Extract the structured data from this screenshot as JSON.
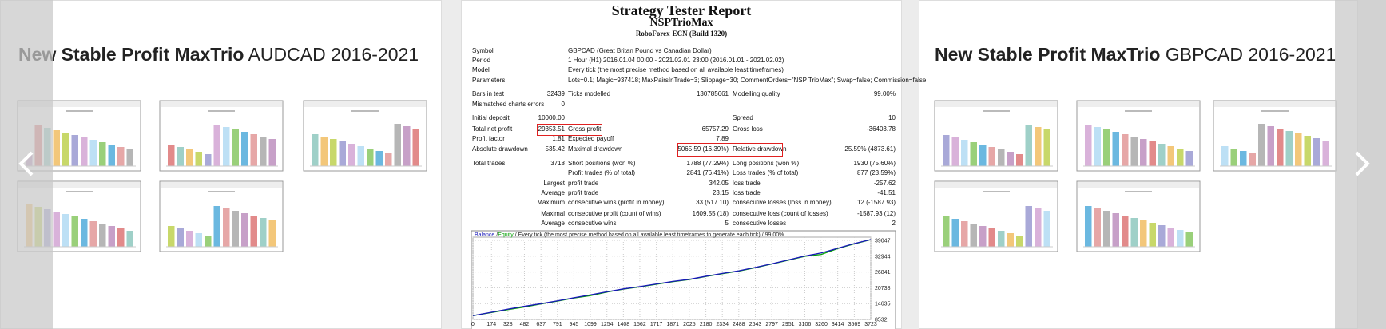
{
  "slides": [
    {
      "title_bold": "New Stable Profit MaxTrio",
      "title_rest": "AUDCAD 2016-2021"
    },
    {
      "title_bold": "New Stable Profit MaxTrio",
      "title_rest": "GBPCAD 2016-2021"
    }
  ],
  "report": {
    "title": "Strategy Tester Report",
    "subtitle": "NSPTrioMax",
    "broker": "RoboForex-ECN (Build 1320)",
    "info": [
      {
        "label": "Symbol",
        "value": "GBPCAD (Great Britan Pound vs Canadian Dollar)"
      },
      {
        "label": "Period",
        "value": "1 Hour (H1) 2016.01.04 00:00 - 2021.02.01 23:00 (2016.01.01 - 2021.02.02)"
      },
      {
        "label": "Model",
        "value": "Every tick (the most precise method based on all available least timeframes)"
      },
      {
        "label": "Parameters",
        "value": "Lots=0.1; Magic=937418; MaxPairsInTrade=3; Slippage=30; CommentOrders=\"NSP TrioMax\"; Swap=false; Commission=false;"
      }
    ],
    "stats": [
      {
        "label": "Bars in test",
        "value": "32439",
        "label2": "Ticks modelled",
        "value2": "130785661",
        "label3": "Modelling quality",
        "value3": "99.00%"
      },
      {
        "label": "Mismatched charts errors",
        "value": "0"
      },
      {
        "label": "Initial deposit",
        "value": "10000.00",
        "label3": "Spread",
        "value3": "10"
      },
      {
        "label": "Total net profit",
        "value": "29353.51",
        "label2": "Gross profit",
        "value2": "65757.29",
        "label3": "Gross loss",
        "value3": "-36403.78"
      },
      {
        "label": "Profit factor",
        "value": "1.81",
        "label2": "Expected payoff",
        "value2": "7.89"
      },
      {
        "label": "Absolute drawdown",
        "value": "535.42",
        "label2": "Maximal drawdown",
        "value2": "5065.59 (16.39%)",
        "label3": "Relative drawdown",
        "value3": "25.59% (4873.61)"
      },
      {
        "label": "Total trades",
        "value": "3718",
        "label2": "Short positions (won %)",
        "value2": "1788 (77.29%)",
        "label3": "Long positions (won %)",
        "value3": "1930 (75.60%)"
      },
      {
        "label2": "Profit trades (% of total)",
        "value2": "2841 (76.41%)",
        "label3": "Loss trades (% of total)",
        "value3": "877 (23.59%)"
      },
      {
        "qualifier": "Largest",
        "label2": "profit trade",
        "value2": "342.05",
        "label3": "loss trade",
        "value3": "-257.62"
      },
      {
        "qualifier": "Average",
        "label2": "profit trade",
        "value2": "23.15",
        "label3": "loss trade",
        "value3": "-41.51"
      },
      {
        "qualifier": "Maximum",
        "label2": "consecutive wins (profit in money)",
        "value2": "33 (517.10)",
        "label3": "consecutive losses (loss in money)",
        "value3": "12 (-1587.93)"
      },
      {
        "qualifier": "Maximal",
        "label2": "consecutive profit (count of wins)",
        "value2": "1609.55 (18)",
        "label3": "consecutive loss (count of losses)",
        "value3": "-1587.93 (12)"
      },
      {
        "qualifier": "Average",
        "label2": "consecutive wins",
        "value2": "5",
        "label3": "consecutive losses",
        "value3": "2"
      }
    ]
  },
  "chart_data": {
    "type": "line",
    "legend_separator": "/",
    "legend_note": "Every tick (the most precise method based on all available least timeframes to generate each tick) / 99.00%",
    "x": [
      0,
      174,
      328,
      482,
      637,
      791,
      945,
      1099,
      1254,
      1408,
      1562,
      1717,
      1871,
      2025,
      2180,
      2334,
      2488,
      2643,
      2797,
      2951,
      3106,
      3260,
      3414,
      3569,
      3723
    ],
    "series": [
      {
        "name": "Equity",
        "color": "#00a000",
        "values": [
          10000,
          11200,
          12300,
          13300,
          14500,
          15600,
          16800,
          17700,
          19100,
          20200,
          21100,
          22100,
          23100,
          23900,
          25100,
          26200,
          27200,
          28500,
          29900,
          31400,
          32900,
          33600,
          35900,
          37700,
          39300
        ]
      },
      {
        "name": "Balance",
        "color": "#1818b8",
        "values": [
          10000,
          11300,
          12500,
          13600,
          14600,
          15700,
          16900,
          18000,
          19200,
          20300,
          21200,
          22200,
          23200,
          24000,
          25200,
          26300,
          27300,
          28600,
          30000,
          31500,
          33000,
          34200,
          36000,
          37800,
          39353
        ]
      }
    ],
    "xlim": [
      0,
      3723
    ],
    "ylim": [
      8532,
      39047
    ],
    "xticks": [
      0,
      174,
      328,
      482,
      637,
      791,
      945,
      1099,
      1254,
      1408,
      1562,
      1717,
      1871,
      2025,
      2180,
      2334,
      2488,
      2643,
      2797,
      2951,
      3106,
      3260,
      3414,
      3569,
      3723
    ],
    "yticks": [
      8532,
      14635,
      20738,
      26841,
      32944,
      39047
    ],
    "grid": true
  }
}
